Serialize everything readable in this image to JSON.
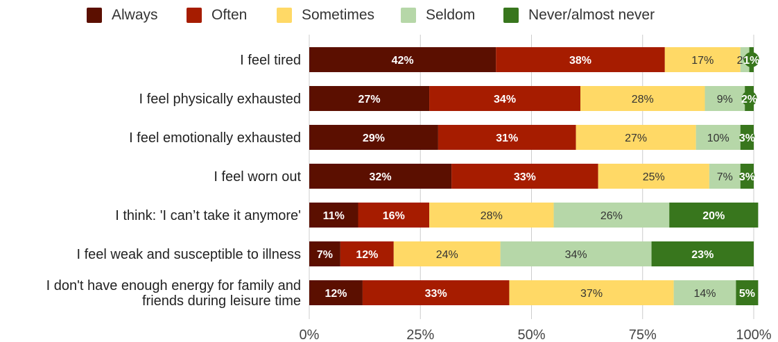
{
  "chart_data": {
    "type": "bar",
    "orientation": "horizontal",
    "stacked": true,
    "categories": [
      [
        "I feel tired"
      ],
      [
        "I feel physically exhausted"
      ],
      [
        "I feel emotionally exhausted"
      ],
      [
        "I feel worn out"
      ],
      [
        "I think: 'I can’t take it anymore'"
      ],
      [
        "I feel weak and susceptible to illness"
      ],
      [
        "I don't have enough energy for family and",
        "friends during leisure time"
      ]
    ],
    "series": [
      {
        "name": "Always",
        "color": "#5b0f00",
        "values": [
          42,
          27,
          29,
          32,
          11,
          7,
          12
        ],
        "labels": [
          "42%",
          "27%",
          "29%",
          "32%",
          "11%",
          "7%",
          "12%"
        ],
        "label_color": "#ffffff"
      },
      {
        "name": "Often",
        "color": "#a61c00",
        "values": [
          38,
          34,
          31,
          33,
          16,
          12,
          33
        ],
        "labels": [
          "38%",
          "34%",
          "31%",
          "33%",
          "16%",
          "12%",
          "33%"
        ],
        "label_color": "#ffffff"
      },
      {
        "name": "Sometimes",
        "color": "#ffd966",
        "values": [
          17,
          28,
          27,
          25,
          28,
          24,
          37
        ],
        "labels": [
          "17%",
          "28%",
          "27%",
          "25%",
          "28%",
          "24%",
          "37%"
        ],
        "label_color": "#333333"
      },
      {
        "name": "Seldom",
        "color": "#b6d7a8",
        "values": [
          2,
          9,
          10,
          7,
          26,
          34,
          14
        ],
        "labels": [
          "2%",
          "9%",
          "10%",
          "7%",
          "26%",
          "34%",
          "14%"
        ],
        "label_color": "#333333"
      },
      {
        "name": "Never/almost never",
        "color": "#38761d",
        "values": [
          1,
          2,
          3,
          3,
          20,
          23,
          5
        ],
        "labels": [
          "1%",
          "2%",
          "3%",
          "3%",
          "20%",
          "23%",
          "5%"
        ],
        "label_color": "#ffffff"
      }
    ],
    "x_ticks": [
      "0%",
      "25%",
      "50%",
      "75%",
      "100%"
    ],
    "xlim": [
      0,
      100
    ],
    "grid": true,
    "legend": "top"
  }
}
